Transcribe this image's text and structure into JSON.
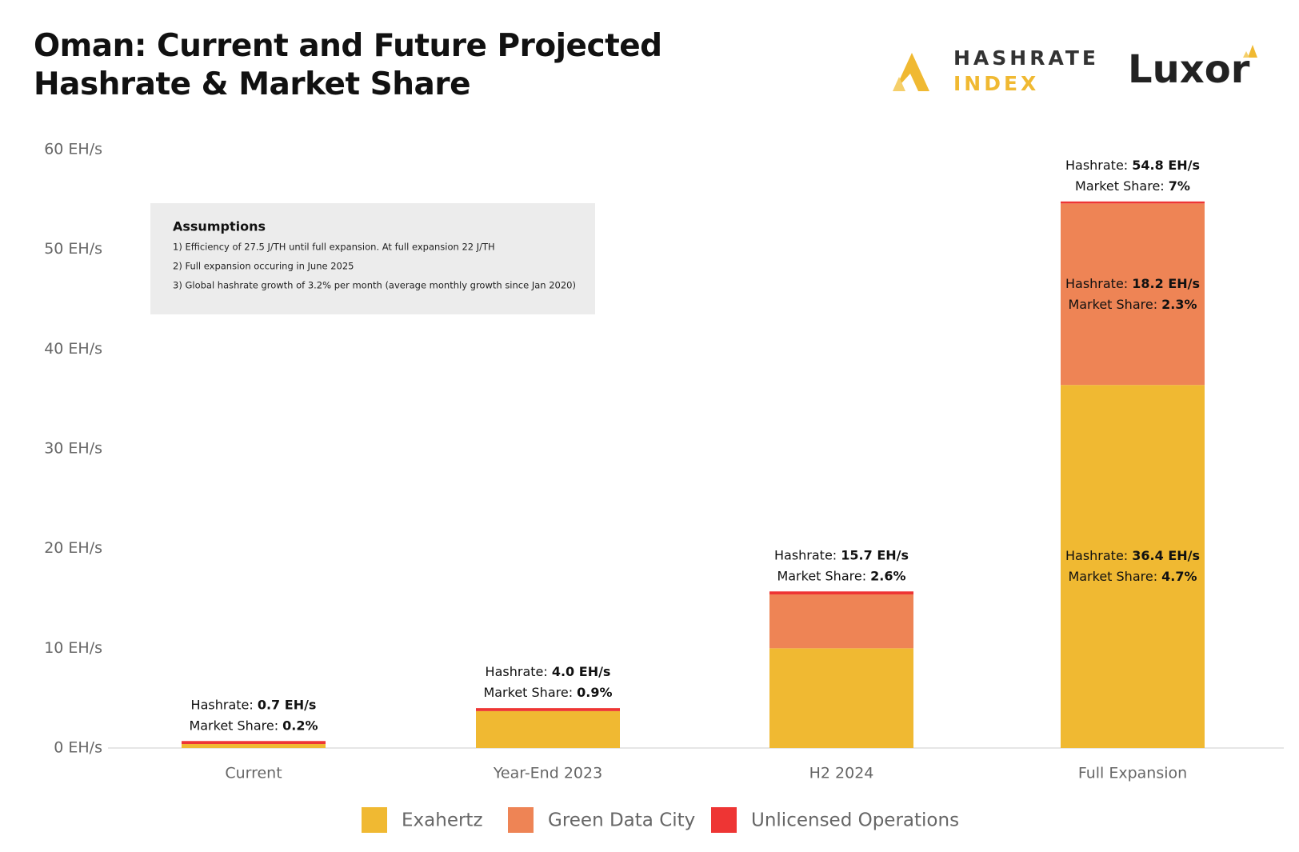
{
  "chart_data": {
    "type": "stacked_bar",
    "title": "Oman: Current and Future Projected Hashrate & Market Share",
    "logos": [
      "HASHRATE",
      "INDEX",
      "Luxor"
    ],
    "categories": [
      "Current",
      "Year-End 2023",
      "H2 2024",
      "Full Expansion"
    ],
    "series": [
      {
        "name": "Exahertz",
        "color": "#f0b932",
        "values": [
          0.4,
          3.7,
          10.0,
          36.4
        ],
        "labels": [
          null,
          null,
          null,
          [
            [
              "Hashrate: ",
              "36.4 EH/s"
            ],
            [
              "Market Share: ",
              "4.7%"
            ]
          ]
        ]
      },
      {
        "name": "Green Data City",
        "color": "#ee8455",
        "values": [
          0,
          0,
          5.4,
          18.2
        ],
        "labels": [
          null,
          null,
          null,
          [
            [
              "Hashrate: ",
              "18.2 EH/s"
            ],
            [
              "Market Share: ",
              "2.3%"
            ]
          ]
        ]
      },
      {
        "name": "Unlicensed Operations",
        "color": "#ee3534",
        "values": [
          0.3,
          0.3,
          0.3,
          0.2
        ],
        "labels": [
          null,
          null,
          null,
          null
        ]
      }
    ],
    "total_labels": [
      [
        [
          "Hashrate: ",
          "0.7 EH/s"
        ],
        [
          "Market Share: ",
          "0.2%"
        ]
      ],
      [
        [
          "Hashrate: ",
          "4.0 EH/s"
        ],
        [
          "Market Share: ",
          "0.9%"
        ]
      ],
      [
        [
          "Hashrate: ",
          "15.7 EH/s"
        ],
        [
          "Market Share: ",
          "2.6%"
        ]
      ],
      [
        [
          "Hashrate: ",
          "54.8 EH/s"
        ],
        [
          "Market Share: ",
          "7%"
        ]
      ]
    ],
    "assumptions": {
      "title": "Assumptions",
      "items": [
        "1) Efficiency of 27.5 J/TH until full expansion. At full expansion 22 J/TH",
        "2) Full expansion occuring in June 2025",
        "3) Global hashrate growth of 3.2% per month (average monthly growth since Jan 2020)"
      ]
    },
    "ylim": [
      0,
      60
    ],
    "yticks": [
      {
        "value": 0,
        "label": "0 EH/s"
      },
      {
        "value": 10,
        "label": "10 EH/s"
      },
      {
        "value": 20,
        "label": "20 EH/s"
      },
      {
        "value": 30,
        "label": "30 EH/s"
      },
      {
        "value": 40,
        "label": "40 EH/s"
      },
      {
        "value": 50,
        "label": "50 EH/s"
      },
      {
        "value": 60,
        "label": "60 EH/s"
      }
    ],
    "legend": "bottom"
  }
}
